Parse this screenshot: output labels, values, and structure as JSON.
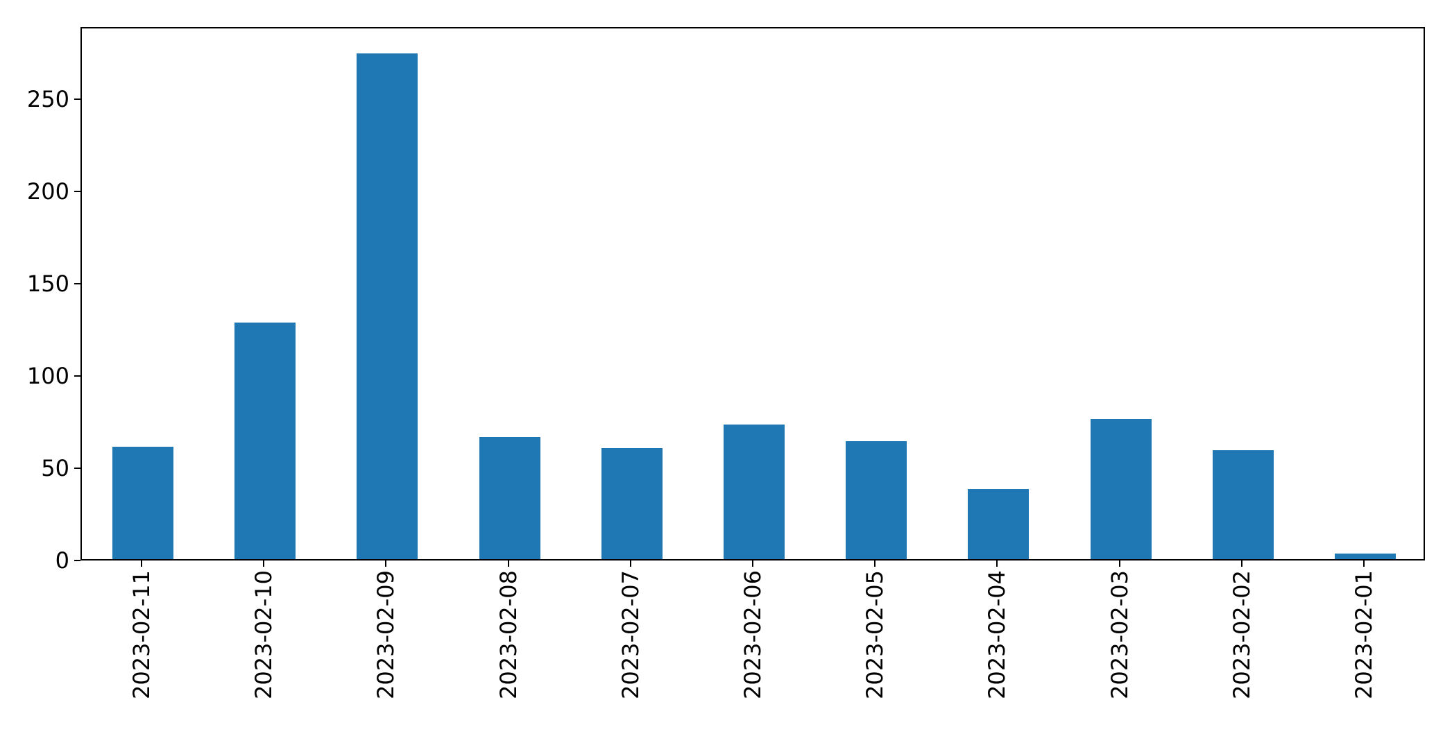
{
  "figure": {
    "background": "#ffffff",
    "axis_color": "#000000",
    "text_color": "#000000"
  },
  "chart_data": {
    "type": "bar",
    "title": "",
    "xlabel": "",
    "ylabel": "",
    "categories": [
      "2023-02-11",
      "2023-02-10",
      "2023-02-09",
      "2023-02-08",
      "2023-02-07",
      "2023-02-06",
      "2023-02-05",
      "2023-02-04",
      "2023-02-03",
      "2023-02-02",
      "2023-02-01"
    ],
    "values": [
      61,
      128,
      274,
      66,
      60,
      73,
      64,
      38,
      76,
      59,
      3
    ],
    "bar_color": "#1f77b4",
    "y_ticks": [
      0,
      50,
      100,
      150,
      200,
      250
    ],
    "ylim": [
      0,
      289
    ],
    "grid": false,
    "legend": "none",
    "x_tick_rotation_deg": 90
  }
}
